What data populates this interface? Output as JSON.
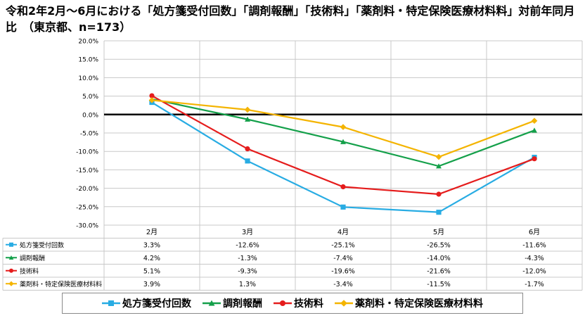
{
  "title": "令和2年2月～6月における「処方箋受付回数」「調剤報酬」「技術料」「薬剤料・特定保険医療材料料」対前年同月比　（東京都、n=173）",
  "chart_data": {
    "type": "line",
    "title": "令和2年2月～6月における「処方箋受付回数」「調剤報酬」「技術料」「薬剤料・特定保険医療材料料」対前年同月比　（東京都、n=173）",
    "categories": [
      "2月",
      "3月",
      "4月",
      "5月",
      "6月"
    ],
    "ylim": [
      -30,
      20
    ],
    "ytick_step": 5,
    "ytick_labels": [
      "20.0%",
      "15.0%",
      "10.0%",
      "5.0%",
      "0.0%",
      "-5.0%",
      "-10.0%",
      "-15.0%",
      "-20.0%",
      "-25.0%",
      "-30.0%"
    ],
    "grid": true,
    "legend": "bottom",
    "series": [
      {
        "name": "処方箋受付回数",
        "color": "#28ace3",
        "marker": "square",
        "values": [
          3.3,
          -12.6,
          -25.1,
          -26.5,
          -11.6
        ],
        "labels": [
          "3.3%",
          "-12.6%",
          "-25.1%",
          "-26.5%",
          "-11.6%"
        ]
      },
      {
        "name": "調剤報酬",
        "color": "#14a04a",
        "marker": "triangle",
        "values": [
          4.2,
          -1.3,
          -7.4,
          -14.0,
          -4.3
        ],
        "labels": [
          "4.2%",
          "-1.3%",
          "-7.4%",
          "-14.0%",
          "-4.3%"
        ]
      },
      {
        "name": "技術料",
        "color": "#e51c1c",
        "marker": "circle",
        "values": [
          5.1,
          -9.3,
          -19.6,
          -21.6,
          -12.0
        ],
        "labels": [
          "5.1%",
          "-9.3%",
          "-19.6%",
          "-21.6%",
          "-12.0%"
        ]
      },
      {
        "name": "薬剤料・特定保険医療材料料",
        "color": "#f4b400",
        "marker": "diamond",
        "values": [
          3.9,
          1.3,
          -3.4,
          -11.5,
          -1.7
        ],
        "labels": [
          "3.9%",
          "1.3%",
          "-3.4%",
          "-11.5%",
          "-1.7%"
        ]
      }
    ]
  }
}
